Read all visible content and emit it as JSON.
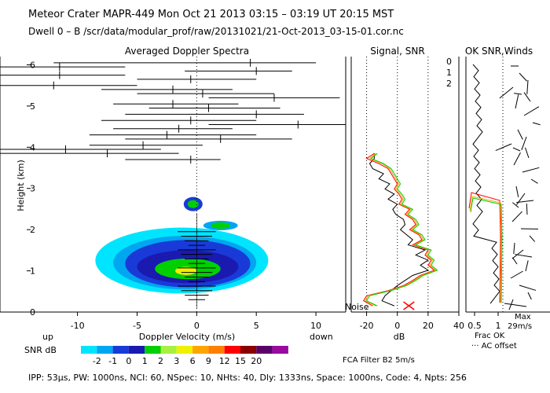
{
  "header": {
    "line1": "Meteor Crater  MAPR-449  Mon Oct 21 2013 03:15 – 03:19 UT 20:15 MST",
    "line2": "Dwell  0 –  B   /scr/data/modular_prof/raw/20131021/21-Oct-2013_03-15-01.cor.nc"
  },
  "footer": "IPP: 53μs,  PW: 1000ns,  NCI: 60,  NSpec: 10, NHts: 40,  Dly: 1333ns,  Space: 1000ns,  Code: 4,  Npts: 256",
  "chart_data": [
    {
      "type": "heatmap",
      "title": "Averaged Doppler Spectra",
      "xlabel": "Doppler Velocity (m/s)",
      "ylabel": "Height (km)",
      "xlim": [
        -16.5,
        12.5
      ],
      "ylim": [
        0,
        6.2
      ],
      "xticks": [
        -10,
        -5,
        0,
        5,
        10
      ],
      "yticks": [
        0,
        1,
        2,
        3,
        4,
        5,
        6
      ],
      "x_extra_left": "up",
      "x_extra_right": "down",
      "colorbar_label": "SNR dB",
      "colorbar_ticks": [
        "-2",
        "-1",
        "0",
        "1",
        "2",
        "3",
        "6",
        "9",
        "12",
        "15",
        "20"
      ],
      "colorbar_colors": [
        "#00e5ff",
        "#00a6f0",
        "#1a3ad8",
        "#1a1ab0",
        "#00d000",
        "#a8f040",
        "#f0f000",
        "#ffa500",
        "#ff8000",
        "#ff0000",
        "#8a0000",
        "#5a006a",
        "#9a0aa0"
      ],
      "spectral_width_bars": [
        {
          "h": 6.05,
          "lo": -12.0,
          "hi": 10.0,
          "mean": 4.5
        },
        {
          "h": 5.95,
          "lo": -16.5,
          "hi": -6.0,
          "mean": -11.5
        },
        {
          "h": 5.85,
          "lo": -1.0,
          "hi": 8.0,
          "mean": 5.0
        },
        {
          "h": 5.75,
          "lo": -16.5,
          "hi": -6.0,
          "mean": -11.5
        },
        {
          "h": 5.65,
          "lo": -5.0,
          "hi": 5.0,
          "mean": -0.5
        },
        {
          "h": 5.5,
          "lo": -16.5,
          "hi": -5.0,
          "mean": -12.0
        },
        {
          "h": 5.4,
          "lo": -8.0,
          "hi": 3.0,
          "mean": -2.0
        },
        {
          "h": 5.3,
          "lo": -5.0,
          "hi": 6.5,
          "mean": 0.5
        },
        {
          "h": 5.2,
          "lo": 1.0,
          "hi": 12.0,
          "mean": 6.5
        },
        {
          "h": 5.05,
          "lo": -7.0,
          "hi": 3.5,
          "mean": -2.0
        },
        {
          "h": 4.95,
          "lo": -4.0,
          "hi": 7.0,
          "mean": 1.0
        },
        {
          "h": 4.8,
          "lo": -6.0,
          "hi": 9.0,
          "mean": 5.0
        },
        {
          "h": 4.65,
          "lo": -8.0,
          "hi": 5.0,
          "mean": -0.5
        },
        {
          "h": 4.55,
          "lo": 1.0,
          "hi": 12.5,
          "mean": 8.5
        },
        {
          "h": 4.45,
          "lo": -7.0,
          "hi": 3.0,
          "mean": -1.5
        },
        {
          "h": 4.3,
          "lo": -9.0,
          "hi": 5.0,
          "mean": -2.5
        },
        {
          "h": 4.2,
          "lo": -6.0,
          "hi": 8.0,
          "mean": 2.0
        },
        {
          "h": 4.05,
          "lo": -9.0,
          "hi": 0.5,
          "mean": -4.5
        },
        {
          "h": 3.95,
          "lo": -16.5,
          "hi": -3.0,
          "mean": -11.0
        },
        {
          "h": 3.85,
          "lo": -16.5,
          "hi": -1.5,
          "mean": -7.5
        },
        {
          "h": 3.7,
          "lo": -6.0,
          "hi": 2.0,
          "mean": -0.5
        }
      ],
      "echo_regions": [
        {
          "level": 0,
          "vmin": -8.5,
          "vmax": 6.0,
          "hmin": 0.45,
          "hmax": 2.05
        },
        {
          "level": 1,
          "vmin": -7.0,
          "vmax": 5.0,
          "hmin": 0.55,
          "hmax": 1.85
        },
        {
          "level": 2,
          "vmin": -6.0,
          "vmax": 4.5,
          "hmin": 0.6,
          "hmax": 1.75
        },
        {
          "level": 3,
          "vmin": -5.0,
          "vmax": 3.5,
          "hmin": 0.7,
          "hmax": 1.5
        },
        {
          "level": 4,
          "vmin": -3.5,
          "vmax": 2.0,
          "hmin": 0.8,
          "hmax": 1.3
        },
        {
          "level": 6,
          "vmin": -1.8,
          "vmax": 0.0,
          "hmin": 0.9,
          "hmax": 1.1
        }
      ]
    },
    {
      "type": "line",
      "title": "Signal, SNR",
      "xlabel": "dB",
      "xlim": [
        -30,
        40
      ],
      "xticks": [
        -20,
        0,
        20,
        40
      ],
      "noise_label": "Noise",
      "legend": [
        "0",
        "1",
        "2"
      ],
      "legend_colors": [
        "#ff0000",
        "#ffa500",
        "#00d000"
      ],
      "series": [
        {
          "name": "signal",
          "color": "#000000",
          "x": [
            -15,
            -15,
            -18,
            -16,
            -9,
            -12,
            -5,
            -8,
            -2,
            -6,
            0,
            -3,
            -1,
            4,
            5,
            2,
            6,
            10,
            7,
            18,
            12,
            20,
            15,
            20,
            10,
            5,
            0,
            -4,
            -8,
            -10,
            -2
          ]
        },
        {
          "name": "0",
          "color": "#ff0000",
          "x": [
            -15,
            -20,
            -12,
            -6,
            -4,
            -2,
            0,
            -2,
            1,
            3,
            1,
            8,
            5,
            10,
            12,
            8,
            14,
            16,
            10,
            20,
            18,
            22,
            20,
            24,
            15,
            10,
            4,
            -6,
            -20,
            -22,
            -16
          ]
        },
        {
          "name": "1",
          "color": "#ffa500",
          "x": [
            -14,
            -18,
            -10,
            -5,
            -3,
            -1,
            1,
            -1,
            2,
            4,
            2,
            9,
            6,
            11,
            13,
            9,
            15,
            17,
            11,
            21,
            19,
            23,
            21,
            25,
            16,
            11,
            5,
            -5,
            -19,
            -21,
            -14
          ]
        },
        {
          "name": "2",
          "color": "#00d000",
          "x": [
            -13,
            -17,
            -9,
            -4,
            -2,
            0,
            2,
            0,
            3,
            5,
            3,
            10,
            7,
            12,
            14,
            10,
            16,
            18,
            12,
            22,
            20,
            24,
            22,
            26,
            17,
            12,
            6,
            -4,
            -18,
            -20,
            -13
          ]
        }
      ]
    },
    {
      "type": "line",
      "title": "OK SNR,Winds",
      "xticks": [
        "0.5",
        "1"
      ],
      "xlabel": "Frac OK",
      "note": "··· AC offset",
      "max_label": "Max",
      "max_value": "29m/s",
      "filter_note": "FCA Filter B2  5m/s"
    }
  ]
}
